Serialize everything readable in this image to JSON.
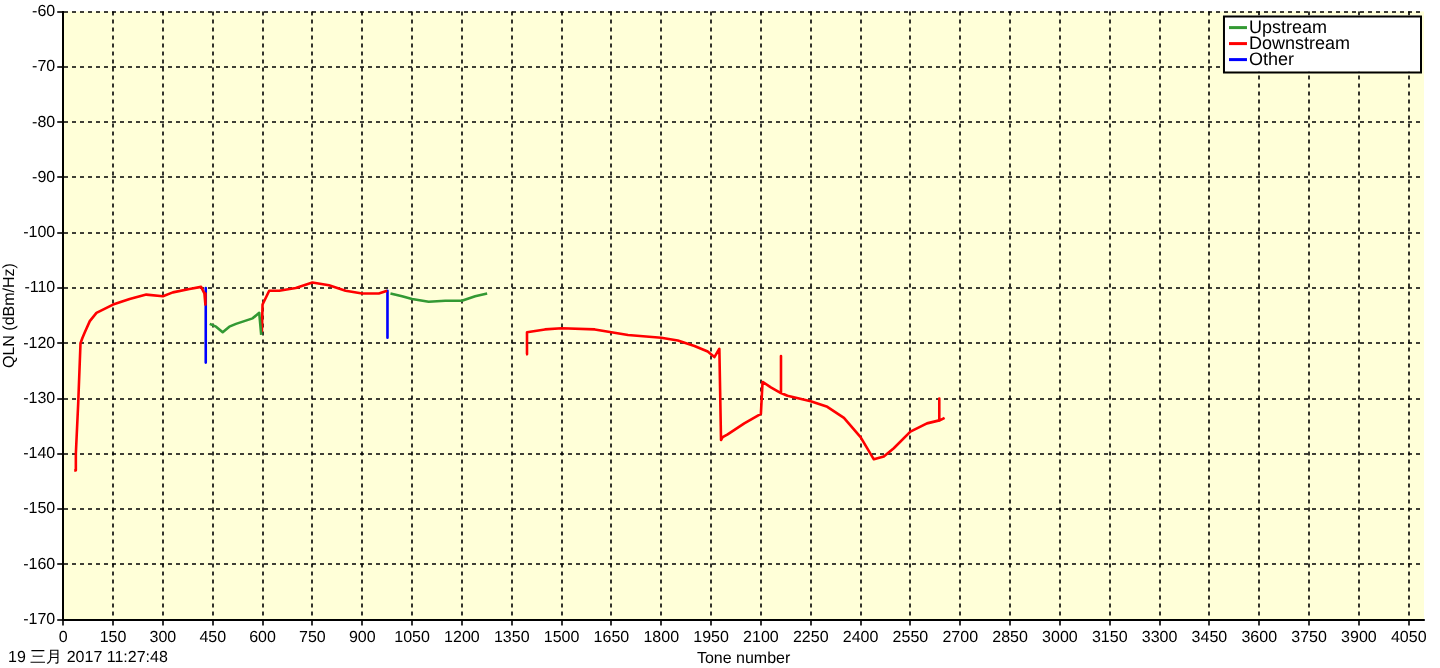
{
  "chart_data": {
    "type": "line",
    "xlabel": "Tone number",
    "ylabel": "QLN (dBm/Hz)",
    "annotations": [
      "19 三月 2017 11:27:48"
    ],
    "xlim": [
      0,
      4096
    ],
    "xticks": [
      0,
      150,
      300,
      450,
      600,
      750,
      900,
      1050,
      1200,
      1350,
      1500,
      1650,
      1800,
      1950,
      2100,
      2250,
      2400,
      2550,
      2700,
      2850,
      3000,
      3150,
      3300,
      3450,
      3600,
      3750,
      3900,
      4050
    ],
    "ylim": [
      -170,
      -60
    ],
    "yticks": [
      -170,
      -160,
      -150,
      -140,
      -130,
      -120,
      -110,
      -100,
      -90,
      -80,
      -70,
      -60
    ],
    "grid": true,
    "legend": "top right",
    "marker": "none",
    "line_style": "solid",
    "series": [
      {
        "name": "Upstream",
        "color": "#339933",
        "x": [
          441,
          460,
          480,
          500,
          520,
          545,
          570,
          590,
          596,
          597,
          985,
          1020,
          1050,
          1100,
          1150,
          1200,
          1240,
          1276
        ],
        "values": [
          -116.5,
          -117,
          -118,
          -117,
          -116.5,
          -116,
          -115.5,
          -114.5,
          -118.5,
          null,
          -111,
          -111.5,
          -112,
          -112.5,
          -112.3,
          -112.3,
          -111.5,
          -111
        ]
      },
      {
        "name": "Downstream",
        "color": "#ff0000",
        "x": [
          33,
          38,
          45,
          52,
          58,
          65,
          80,
          100,
          150,
          200,
          250,
          300,
          330,
          380,
          415,
          425,
          428,
          429,
          598,
          600,
          620,
          650,
          700,
          750,
          800,
          850,
          900,
          950,
          975,
          976,
          1393,
          1395,
          1397,
          1450,
          1500,
          1600,
          1700,
          1800,
          1850,
          1900,
          1940,
          1960,
          1975,
          1980,
          1985,
          2000,
          2050,
          2100,
          2105,
          2130,
          2159,
          2160,
          2161,
          2180,
          2250,
          2300,
          2350,
          2400,
          2440,
          2470,
          2500,
          2550,
          2600,
          2634,
          2636,
          2638,
          2653
        ],
        "values": [
          -143,
          -140,
          -131,
          -120,
          -119,
          -118,
          -116,
          -114.5,
          -113,
          -112,
          -111.2,
          -111.5,
          -110.8,
          -110.2,
          -109.8,
          -111,
          -113,
          null,
          -118,
          -113,
          -110.5,
          -110.5,
          -110,
          -109,
          -109.5,
          -110.5,
          -111,
          -111,
          -110.5,
          null,
          -122,
          -118,
          -118,
          -117.5,
          -117.3,
          -117.5,
          -118.5,
          -119,
          -119.5,
          -120.5,
          -121.5,
          -122.5,
          -121,
          -137.5,
          -137,
          -136.5,
          -134.5,
          -132.8,
          -127,
          -128,
          -129,
          -122.3,
          -129,
          -129.5,
          -130.5,
          -131.5,
          -133.5,
          -137,
          -141,
          -140.5,
          -139,
          -136,
          -134.5,
          -134,
          -130,
          -134,
          -133.5
        ]
      },
      {
        "name": "Other",
        "color": "#0000ff",
        "x": [
          429,
          429,
          430,
          976,
          976
        ],
        "values": [
          -110,
          -123.5,
          null,
          -110.5,
          -119
        ]
      }
    ]
  }
}
